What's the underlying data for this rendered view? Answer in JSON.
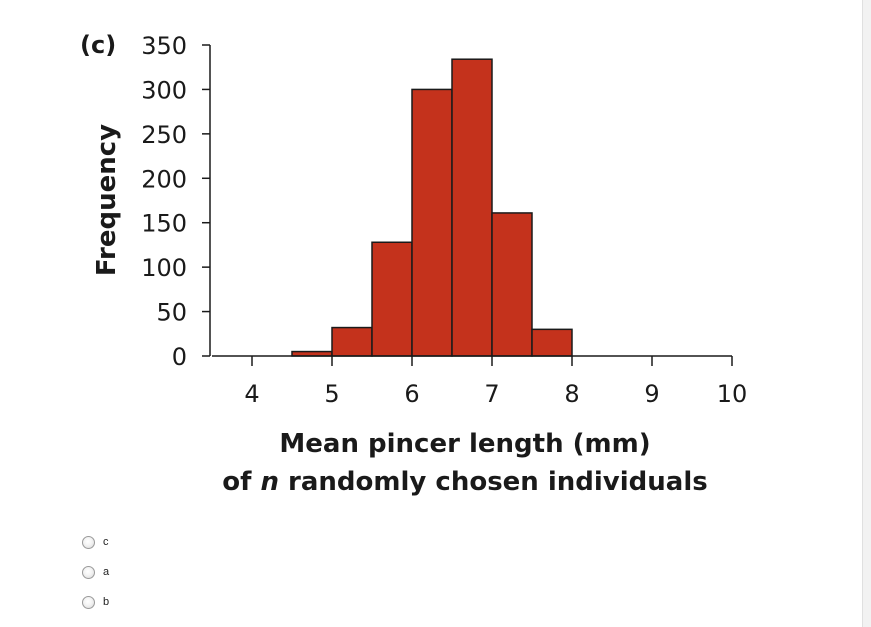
{
  "chart_data": {
    "type": "bar",
    "panel_label": "(c)",
    "xlabel": "Mean pincer length (mm)",
    "xlabel_line2_prefix": "of ",
    "xlabel_line2_italic": "n",
    "xlabel_line2_suffix": " randomly chosen individuals",
    "ylabel": "Frequency",
    "xlim": [
      3.5,
      10
    ],
    "ylim": [
      0,
      350
    ],
    "x_ticks": [
      4,
      5,
      6,
      7,
      8,
      9,
      10
    ],
    "y_ticks": [
      0,
      50,
      100,
      150,
      200,
      250,
      300,
      350
    ],
    "bin_width": 0.5,
    "bins": [
      {
        "start": 4.5,
        "end": 5.0,
        "value": 5
      },
      {
        "start": 5.0,
        "end": 5.5,
        "value": 32
      },
      {
        "start": 5.5,
        "end": 6.0,
        "value": 128
      },
      {
        "start": 6.0,
        "end": 6.5,
        "value": 300
      },
      {
        "start": 6.5,
        "end": 7.0,
        "value": 334
      },
      {
        "start": 7.0,
        "end": 7.5,
        "value": 161
      },
      {
        "start": 7.5,
        "end": 8.0,
        "value": 30
      }
    ],
    "bar_color": "#c4321c",
    "bar_edge_color": "#1a1a1a",
    "grid": false
  },
  "options": [
    {
      "label": "c"
    },
    {
      "label": "a"
    },
    {
      "label": "b"
    }
  ]
}
